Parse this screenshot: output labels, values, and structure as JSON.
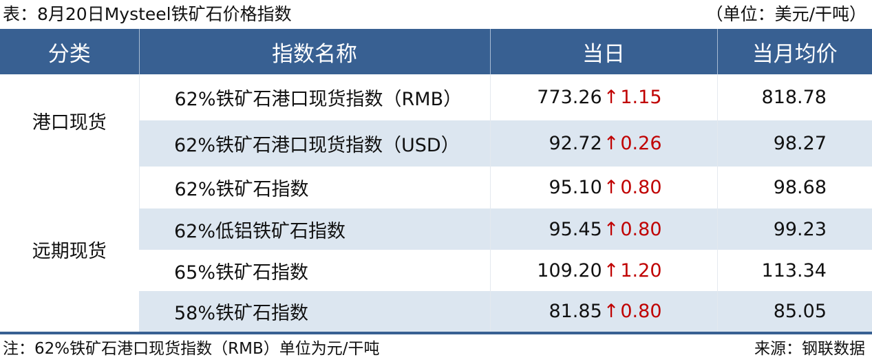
{
  "title": "表：8月20日Mysteel铁矿石价格指数",
  "unit": "（单位：美元/干吨）",
  "headers": [
    "分类",
    "指数名称",
    "当日",
    "当月均价"
  ],
  "groups": [
    {
      "category": "港口现货",
      "rows": [
        {
          "name": "62%铁矿石港口现货指数（RMB）",
          "value": "773.26",
          "direction": "up",
          "change": "1.15",
          "month_avg": "818.78"
        },
        {
          "name": "62%铁矿石港口现货指数（USD）",
          "value": "92.72",
          "direction": "up",
          "change": "0.26",
          "month_avg": "98.27"
        }
      ]
    },
    {
      "category": "远期现货",
      "rows": [
        {
          "name": "62%铁矿石指数",
          "value": "95.10",
          "direction": "up",
          "change": "0.80",
          "month_avg": "98.68"
        },
        {
          "name": "62%低铝铁矿石指数",
          "value": "95.45",
          "direction": "up",
          "change": "0.80",
          "month_avg": "99.23"
        },
        {
          "name": "65%铁矿石指数",
          "value": "109.20",
          "direction": "up",
          "change": "1.20",
          "month_avg": "113.34"
        },
        {
          "name": "58%铁矿石指数",
          "value": "81.85",
          "direction": "up",
          "change": "0.80",
          "month_avg": "85.05"
        }
      ]
    }
  ],
  "arrow_glyph": "↑",
  "note": "注：62%铁矿石港口现货指数（RMB）单位为元/干吨",
  "source": "来源：钢联数据",
  "colors": {
    "header_bg": "#386092",
    "alt_row": "#dce6f0",
    "up": "#c00000"
  }
}
